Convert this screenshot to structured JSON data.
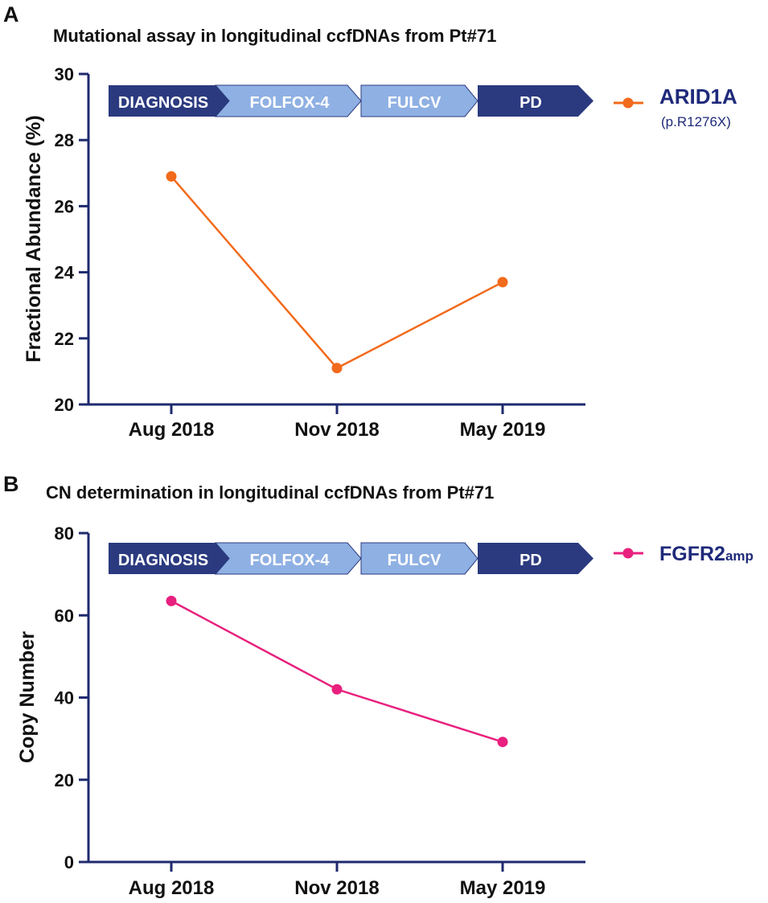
{
  "chart_data": [
    {
      "type": "line",
      "panel_label": "A",
      "title": "Mutational assay in longitudinal ccfDNAs from Pt#71",
      "ylabel": "Fractional Abundance  (%)",
      "xlabel": "",
      "categories": [
        "Aug 2018",
        "Nov 2018",
        "May 2019"
      ],
      "ylim": [
        20,
        30
      ],
      "yticks": [
        20,
        22,
        24,
        26,
        28,
        30
      ],
      "series": [
        {
          "name": "ARID1A",
          "subtitle": "(p.R1276X)",
          "values": [
            26.9,
            21.1,
            23.7
          ],
          "color": "#f26a1b"
        }
      ],
      "timeline": [
        "DIAGNOSIS",
        "FOLFOX-4",
        "FULCV",
        "PD"
      ]
    },
    {
      "type": "line",
      "panel_label": "B",
      "title": "CN determination in longitudinal ccfDNAs from Pt#71",
      "ylabel": "Copy Number",
      "xlabel": "",
      "categories": [
        "Aug 2018",
        "Nov 2018",
        "May 2019"
      ],
      "ylim": [
        0,
        80
      ],
      "yticks": [
        0,
        20,
        40,
        60,
        80
      ],
      "series": [
        {
          "name": "FGFR2",
          "name_sub": "amp",
          "values": [
            63.5,
            42,
            29.2
          ],
          "color": "#e8207e"
        }
      ],
      "timeline": [
        "DIAGNOSIS",
        "FOLFOX-4",
        "FULCV",
        "PD"
      ]
    }
  ],
  "colors": {
    "axis": "#1f2a6e",
    "dark_segment": "#2b3a7f",
    "light_segment": "#8fb0e3",
    "text": "#1a1a1a",
    "legend_text": "#1f2a7a"
  }
}
